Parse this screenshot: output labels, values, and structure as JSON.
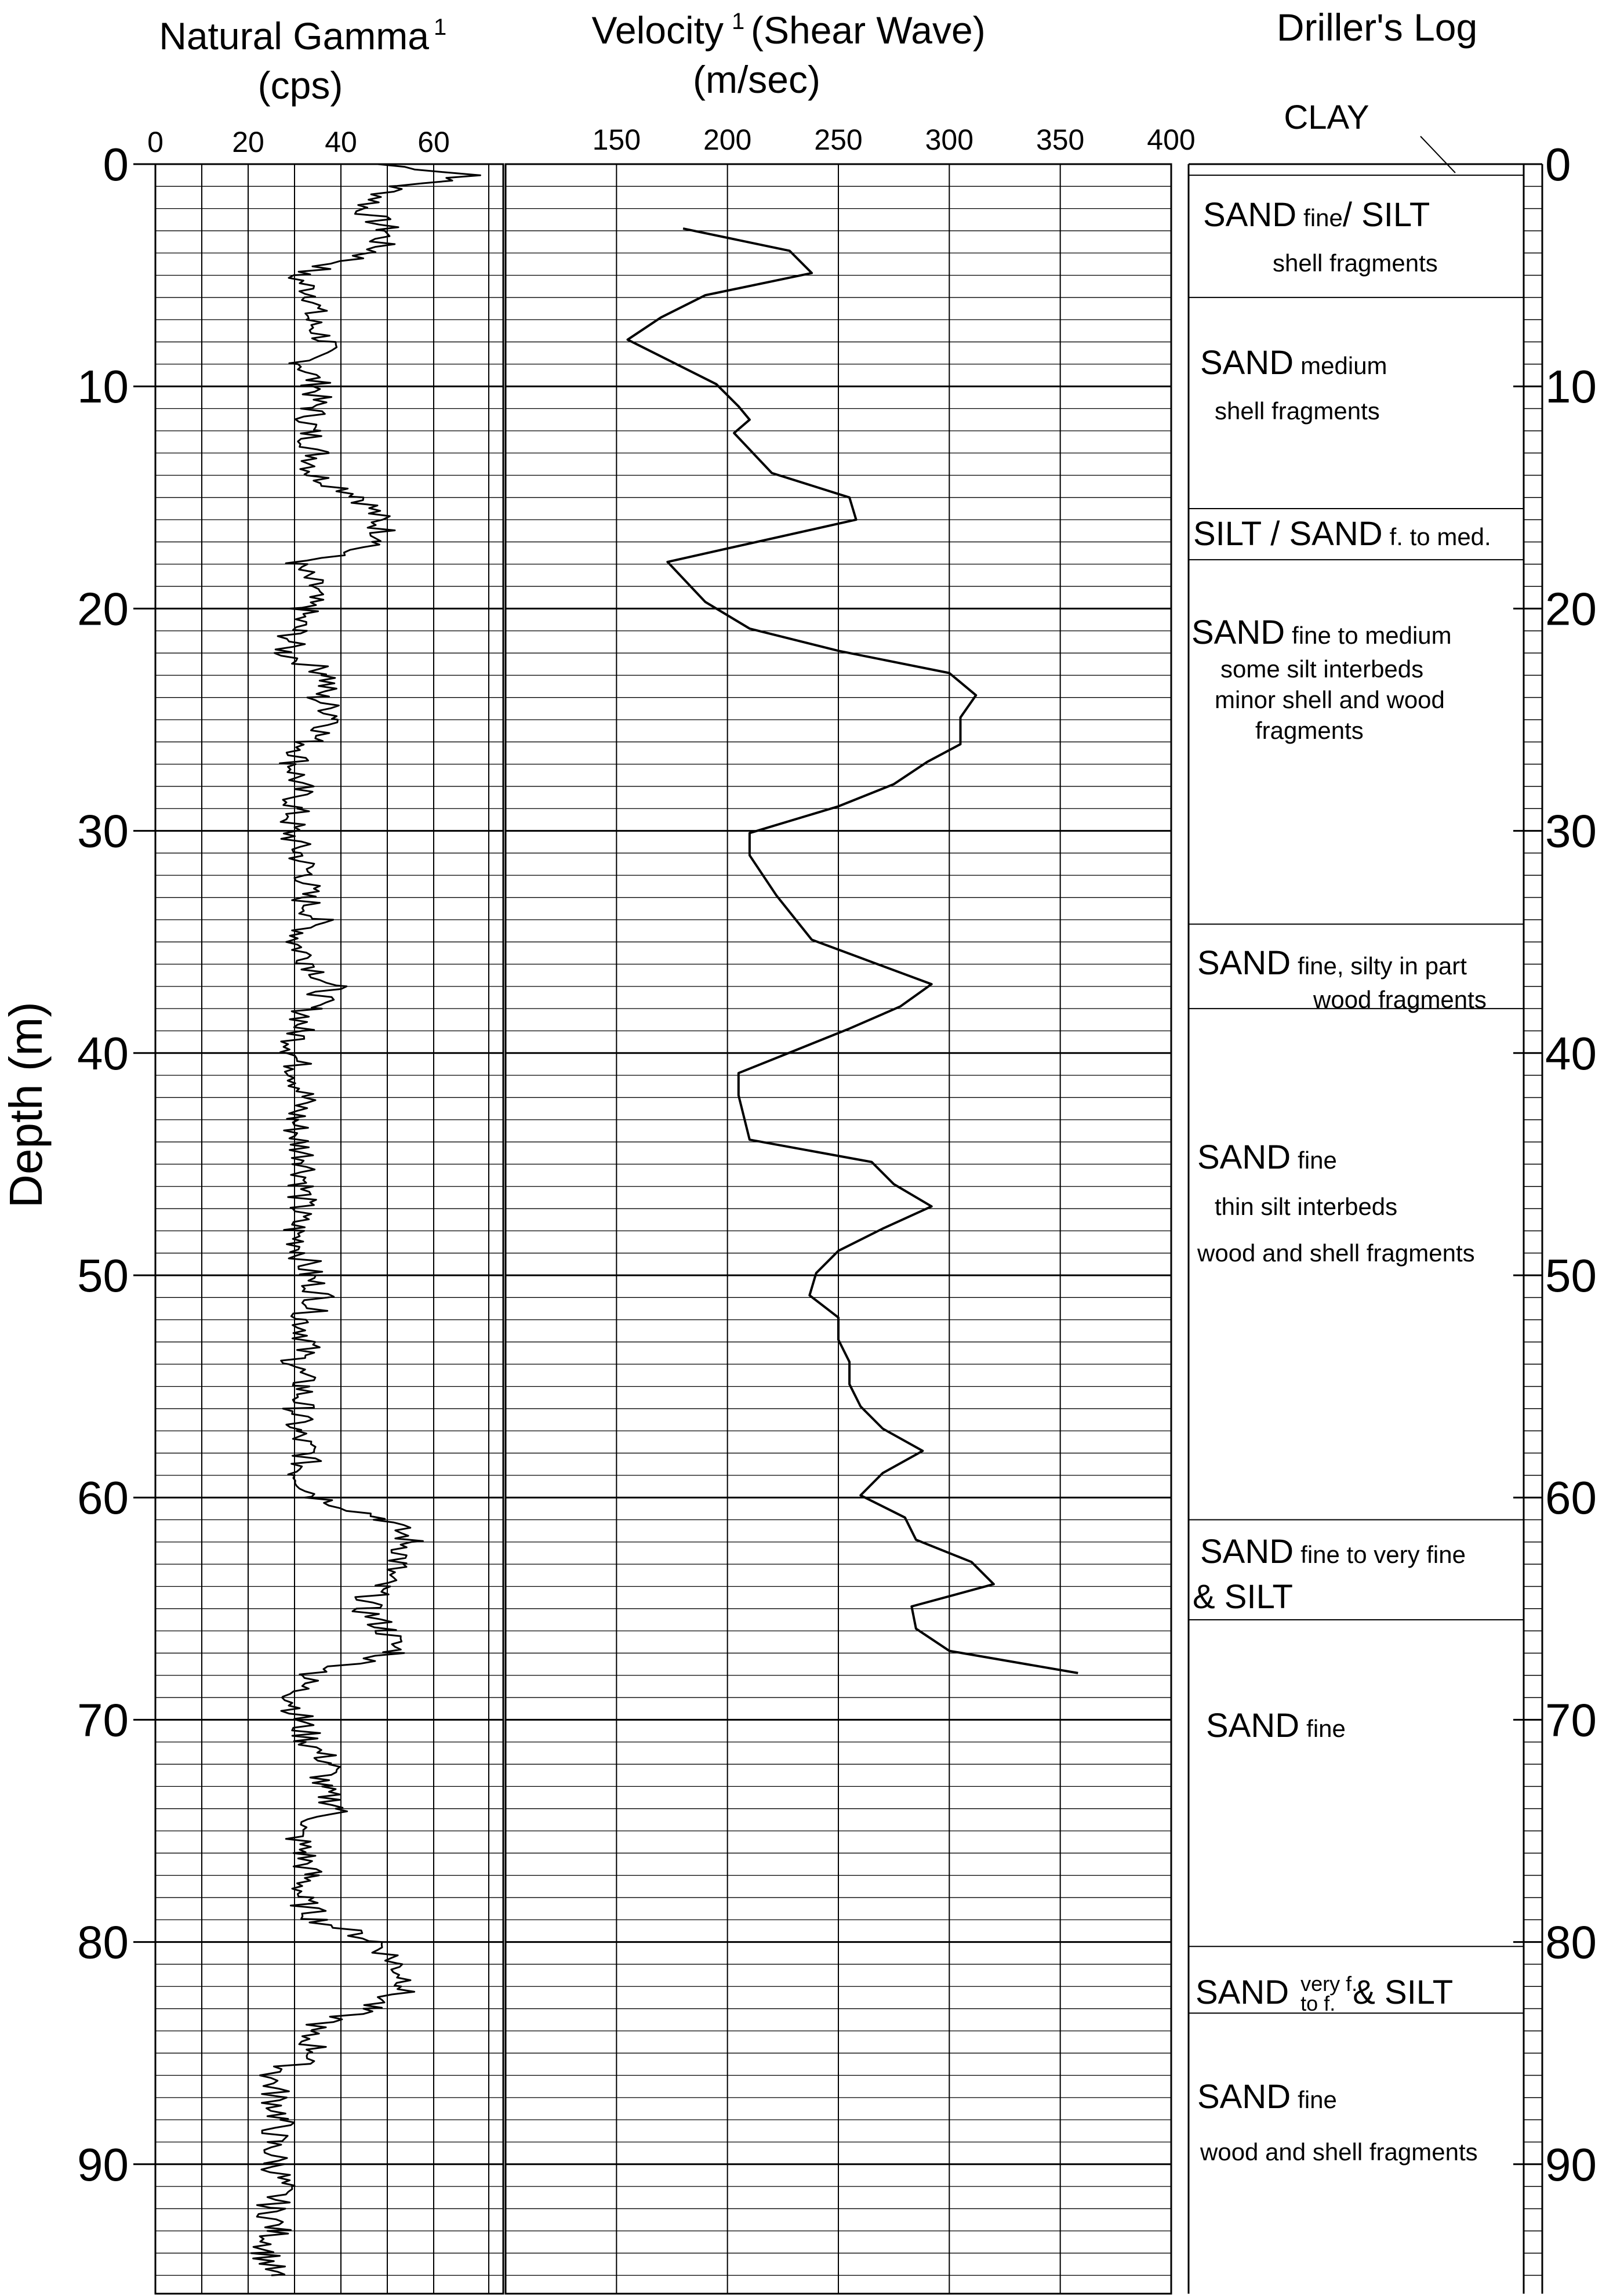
{
  "chart_data": [
    {
      "type": "line",
      "title": "Natural Gamma",
      "title_superscript": "1",
      "units": "(cps)",
      "ylabel": "Depth (m)",
      "xlim": [
        0,
        70
      ],
      "ylim": [
        0,
        95
      ],
      "x_ticks": [
        "0",
        "20",
        "40",
        "60"
      ],
      "y_ticks": [
        "0",
        "10",
        "20",
        "30",
        "40",
        "50",
        "60",
        "70",
        "80",
        "90"
      ],
      "grid": true,
      "series": [
        {
          "depth": [
            0,
            0.5,
            1,
            2,
            3,
            4,
            5,
            6,
            7,
            8,
            9,
            10,
            11,
            12,
            13,
            14,
            15,
            16,
            17,
            18,
            19,
            20,
            21,
            22,
            23,
            24,
            25,
            26,
            27,
            28,
            29,
            30,
            31,
            32,
            33,
            34,
            35,
            36,
            37,
            38,
            39,
            40,
            41,
            42,
            43,
            44,
            45,
            46,
            47,
            48,
            49,
            50,
            51,
            52,
            53,
            54,
            55,
            56,
            57,
            58,
            59,
            60,
            61,
            62,
            63,
            64,
            65,
            66,
            67,
            68,
            69,
            70,
            71,
            72,
            73,
            74,
            75,
            76,
            77,
            78,
            79,
            80,
            81,
            82,
            83,
            84,
            85,
            86,
            87,
            88,
            89,
            90,
            91,
            92,
            93,
            94,
            95
          ],
          "values": [
            48,
            70,
            52,
            45,
            50,
            47,
            30,
            35,
            33,
            37,
            32,
            35,
            34,
            33,
            35,
            34,
            45,
            48,
            50,
            30,
            34,
            32,
            30,
            28,
            38,
            35,
            40,
            33,
            30,
            31,
            30,
            29,
            31,
            33,
            32,
            35,
            30,
            34,
            38,
            33,
            31,
            30,
            31,
            32,
            30,
            31,
            33,
            32,
            31,
            30,
            32,
            33,
            36,
            32,
            33,
            30,
            32,
            31,
            30,
            33,
            31,
            35,
            50,
            55,
            52,
            48,
            45,
            50,
            52,
            33,
            30,
            31,
            33,
            38,
            35,
            40,
            30,
            32,
            33,
            31,
            35,
            48,
            52,
            55,
            45,
            32,
            35,
            25,
            26,
            27,
            25,
            26,
            27,
            25,
            26,
            24,
            25
          ]
        }
      ]
    },
    {
      "type": "line",
      "title": "Velocity",
      "title_superscript": "1",
      "title_suffix": "(Shear Wave)",
      "units": "(m/sec)",
      "xlim": [
        100,
        400
      ],
      "ylim": [
        0,
        95
      ],
      "x_ticks": [
        "150",
        "200",
        "250",
        "300",
        "350",
        "400"
      ],
      "grid": true,
      "series": [
        {
          "depth": [
            2.9,
            3.9,
            4.9,
            5.9,
            6.9,
            7.9,
            9.9,
            10.9,
            11.5,
            12.1,
            13.9,
            15.0,
            16.0,
            17.9,
            19.7,
            20.9,
            21.9,
            22.9,
            23.9,
            24.9,
            26.1,
            26.9,
            27.9,
            28.9,
            30.1,
            31.1,
            32.9,
            34.9,
            35.9,
            36.9,
            37.9,
            38.9,
            39.9,
            40.9,
            41.9,
            43.9,
            44.9,
            45.9,
            46.9,
            47.9,
            48.9,
            49.9,
            50.9,
            51.9,
            52.9,
            53.9,
            54.9,
            55.9,
            56.9,
            57.9,
            58.9,
            59.9,
            60.9,
            61.9,
            62.9,
            63.9,
            64.9,
            65.9,
            66.9,
            67.9
          ],
          "values": [
            180,
            228,
            238,
            190,
            170,
            155,
            195,
            205,
            210,
            203,
            220,
            255,
            258,
            173,
            190,
            210,
            250,
            300,
            312,
            305,
            305,
            290,
            275,
            250,
            210,
            210,
            222,
            238,
            265,
            292,
            278,
            255,
            230,
            205,
            205,
            210,
            265,
            275,
            292,
            270,
            250,
            240,
            237,
            250,
            250,
            255,
            255,
            260,
            270,
            288,
            270,
            260,
            280,
            285,
            310,
            320,
            283,
            285,
            300,
            358
          ]
        }
      ]
    }
  ],
  "drillers_log": {
    "title": "Driller's Log",
    "clay_label": "CLAY",
    "units": [
      {
        "lines": [
          {
            "big": "SAND",
            "small": "fine",
            "big2": "/ SILT"
          },
          {
            "small": "shell fragments"
          }
        ]
      },
      {
        "lines": [
          {
            "big": "SAND",
            "small": "medium"
          },
          {
            "small": "shell fragments"
          }
        ]
      },
      {
        "lines": [
          {
            "big": "SILT / SAND",
            "small": "f. to med."
          }
        ]
      },
      {
        "lines": [
          {
            "big": "SAND",
            "small": "fine to medium"
          },
          {
            "small": "some silt interbeds"
          },
          {
            "small": "minor shell and wood"
          },
          {
            "small": "fragments"
          }
        ]
      },
      {
        "lines": [
          {
            "big": "SAND",
            "small": "fine, silty in part"
          },
          {
            "small": "wood fragments"
          }
        ]
      },
      {
        "lines": [
          {
            "big": "SAND",
            "small": "fine"
          },
          {
            "small": "thin silt interbeds"
          },
          {
            "small": "wood and shell fragments"
          }
        ]
      },
      {
        "lines": [
          {
            "big": "SAND",
            "small": "fine to very fine"
          },
          {
            "big": "& SILT"
          }
        ]
      },
      {
        "lines": [
          {
            "big": "SAND",
            "small": "fine"
          }
        ]
      },
      {
        "lines": [
          {
            "big": "SAND",
            "tiny_top": "very f.",
            "tiny_bottom": "to f.",
            "big2": "& SILT"
          }
        ]
      },
      {
        "lines": [
          {
            "big": "SAND",
            "small": "fine"
          },
          {
            "small": "wood and shell fragments"
          }
        ]
      }
    ],
    "boundaries_m": [
      0.5,
      6,
      15.5,
      17.8,
      34.2,
      38,
      61,
      65.5,
      80.2,
      83.2,
      95
    ]
  },
  "colors": {
    "ink": "#000000",
    "background": "#ffffff"
  }
}
